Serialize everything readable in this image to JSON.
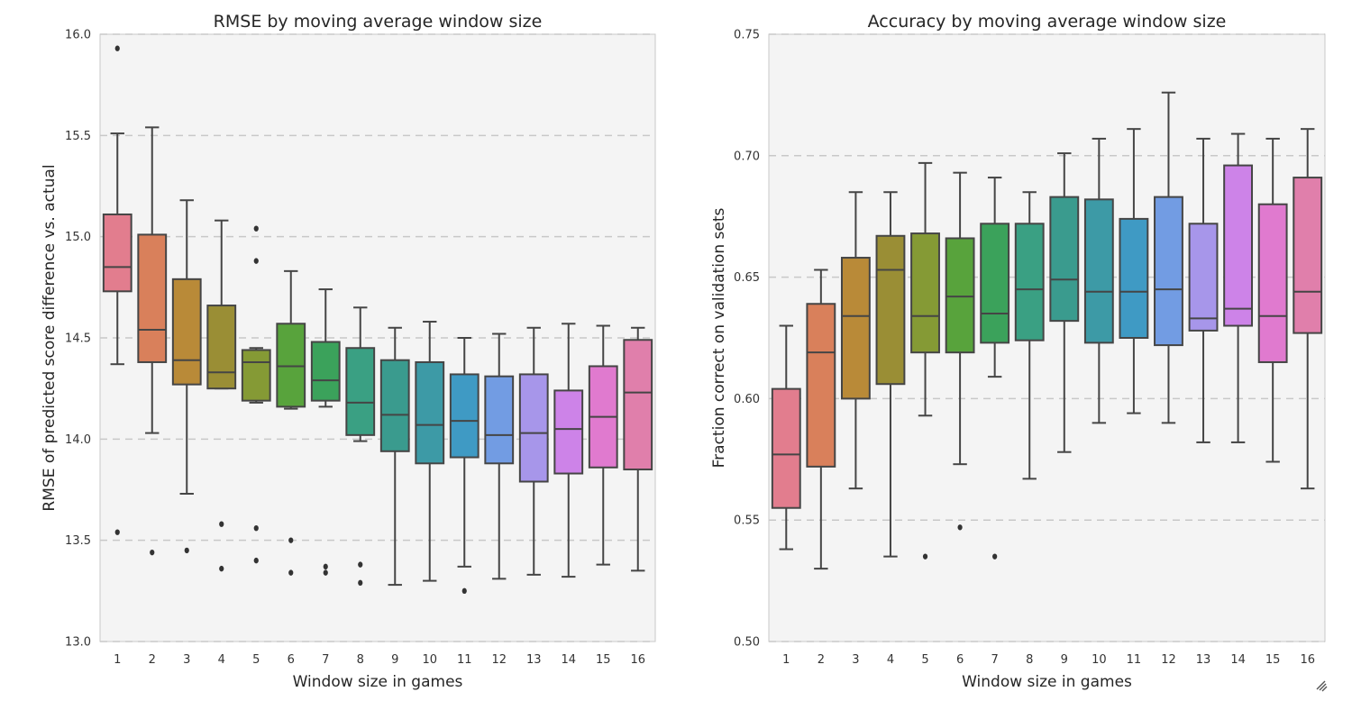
{
  "chart_data": [
    {
      "type": "box",
      "title": "RMSE by moving average window size",
      "xlabel": "Window size in games",
      "ylabel": "RMSE of predicted score difference vs. actual",
      "ylim": [
        13.0,
        16.0
      ],
      "yticks": [
        "13.0",
        "13.5",
        "14.0",
        "14.5",
        "15.0",
        "15.5",
        "16.0"
      ],
      "ytick_values": [
        13.0,
        13.5,
        14.0,
        14.5,
        15.0,
        15.5,
        16.0
      ],
      "grid": "horizontal-dashed",
      "categories": [
        "1",
        "2",
        "3",
        "4",
        "5",
        "6",
        "7",
        "8",
        "9",
        "10",
        "11",
        "12",
        "13",
        "14",
        "15",
        "16"
      ],
      "boxes": [
        {
          "whislo": 14.37,
          "q1": 14.73,
          "med": 14.85,
          "q3": 15.11,
          "whishi": 15.51,
          "fliers": [
            15.93,
            13.54
          ]
        },
        {
          "whislo": 14.03,
          "q1": 14.38,
          "med": 14.54,
          "q3": 15.01,
          "whishi": 15.54,
          "fliers": [
            13.44
          ]
        },
        {
          "whislo": 13.73,
          "q1": 14.27,
          "med": 14.39,
          "q3": 14.79,
          "whishi": 15.18,
          "fliers": [
            13.45
          ]
        },
        {
          "whislo": 14.25,
          "q1": 14.25,
          "med": 14.33,
          "q3": 14.66,
          "whishi": 15.08,
          "fliers": [
            13.58,
            13.36
          ]
        },
        {
          "whislo": 14.18,
          "q1": 14.19,
          "med": 14.38,
          "q3": 14.44,
          "whishi": 14.45,
          "fliers": [
            15.04,
            14.88,
            13.56,
            13.4
          ]
        },
        {
          "whislo": 14.15,
          "q1": 14.16,
          "med": 14.36,
          "q3": 14.57,
          "whishi": 14.83,
          "fliers": [
            13.5,
            13.34
          ]
        },
        {
          "whislo": 14.16,
          "q1": 14.19,
          "med": 14.29,
          "q3": 14.48,
          "whishi": 14.74,
          "fliers": [
            13.37,
            13.34
          ]
        },
        {
          "whislo": 13.99,
          "q1": 14.02,
          "med": 14.18,
          "q3": 14.45,
          "whishi": 14.65,
          "fliers": [
            13.38,
            13.29
          ]
        },
        {
          "whislo": 13.28,
          "q1": 13.94,
          "med": 14.12,
          "q3": 14.39,
          "whishi": 14.55,
          "fliers": []
        },
        {
          "whislo": 13.3,
          "q1": 13.88,
          "med": 14.07,
          "q3": 14.38,
          "whishi": 14.58,
          "fliers": []
        },
        {
          "whislo": 13.37,
          "q1": 13.91,
          "med": 14.09,
          "q3": 14.32,
          "whishi": 14.5,
          "fliers": [
            13.25
          ]
        },
        {
          "whislo": 13.31,
          "q1": 13.88,
          "med": 14.02,
          "q3": 14.31,
          "whishi": 14.52,
          "fliers": []
        },
        {
          "whislo": 13.33,
          "q1": 13.79,
          "med": 14.03,
          "q3": 14.32,
          "whishi": 14.55,
          "fliers": []
        },
        {
          "whislo": 13.32,
          "q1": 13.83,
          "med": 14.05,
          "q3": 14.24,
          "whishi": 14.57,
          "fliers": []
        },
        {
          "whislo": 13.38,
          "q1": 13.86,
          "med": 14.11,
          "q3": 14.36,
          "whishi": 14.56,
          "fliers": []
        },
        {
          "whislo": 13.35,
          "q1": 13.85,
          "med": 14.23,
          "q3": 14.49,
          "whishi": 14.55,
          "fliers": []
        }
      ]
    },
    {
      "type": "box",
      "title": "Accuracy by moving average window size",
      "xlabel": "Window size in games",
      "ylabel": "Fraction correct on validation sets",
      "ylim": [
        0.5,
        0.75
      ],
      "yticks": [
        "0.50",
        "0.55",
        "0.60",
        "0.65",
        "0.70",
        "0.75"
      ],
      "ytick_values": [
        0.5,
        0.55,
        0.6,
        0.65,
        0.7,
        0.75
      ],
      "grid": "horizontal-dashed",
      "categories": [
        "1",
        "2",
        "3",
        "4",
        "5",
        "6",
        "7",
        "8",
        "9",
        "10",
        "11",
        "12",
        "13",
        "14",
        "15",
        "16"
      ],
      "boxes": [
        {
          "whislo": 0.538,
          "q1": 0.555,
          "med": 0.577,
          "q3": 0.604,
          "whishi": 0.63,
          "fliers": []
        },
        {
          "whislo": 0.53,
          "q1": 0.572,
          "med": 0.619,
          "q3": 0.639,
          "whishi": 0.653,
          "fliers": []
        },
        {
          "whislo": 0.563,
          "q1": 0.6,
          "med": 0.634,
          "q3": 0.658,
          "whishi": 0.685,
          "fliers": []
        },
        {
          "whislo": 0.535,
          "q1": 0.606,
          "med": 0.653,
          "q3": 0.667,
          "whishi": 0.685,
          "fliers": []
        },
        {
          "whislo": 0.593,
          "q1": 0.619,
          "med": 0.634,
          "q3": 0.668,
          "whishi": 0.697,
          "fliers": [
            0.535
          ]
        },
        {
          "whislo": 0.573,
          "q1": 0.619,
          "med": 0.642,
          "q3": 0.666,
          "whishi": 0.693,
          "fliers": [
            0.547
          ]
        },
        {
          "whislo": 0.609,
          "q1": 0.623,
          "med": 0.635,
          "q3": 0.672,
          "whishi": 0.691,
          "fliers": [
            0.535
          ]
        },
        {
          "whislo": 0.567,
          "q1": 0.624,
          "med": 0.645,
          "q3": 0.672,
          "whishi": 0.685,
          "fliers": []
        },
        {
          "whislo": 0.578,
          "q1": 0.632,
          "med": 0.649,
          "q3": 0.683,
          "whishi": 0.701,
          "fliers": []
        },
        {
          "whislo": 0.59,
          "q1": 0.623,
          "med": 0.644,
          "q3": 0.682,
          "whishi": 0.707,
          "fliers": []
        },
        {
          "whislo": 0.594,
          "q1": 0.625,
          "med": 0.644,
          "q3": 0.674,
          "whishi": 0.711,
          "fliers": []
        },
        {
          "whislo": 0.59,
          "q1": 0.622,
          "med": 0.645,
          "q3": 0.683,
          "whishi": 0.726,
          "fliers": []
        },
        {
          "whislo": 0.582,
          "q1": 0.628,
          "med": 0.633,
          "q3": 0.672,
          "whishi": 0.707,
          "fliers": []
        },
        {
          "whislo": 0.582,
          "q1": 0.63,
          "med": 0.637,
          "q3": 0.696,
          "whishi": 0.709,
          "fliers": []
        },
        {
          "whislo": 0.574,
          "q1": 0.615,
          "med": 0.634,
          "q3": 0.68,
          "whishi": 0.707,
          "fliers": []
        },
        {
          "whislo": 0.563,
          "q1": 0.627,
          "med": 0.644,
          "q3": 0.691,
          "whishi": 0.711,
          "fliers": []
        }
      ]
    }
  ],
  "colors": [
    "#e27d8e",
    "#d9805b",
    "#b98a38",
    "#9a8e35",
    "#859a35",
    "#58a33c",
    "#3ba25b",
    "#3aa083",
    "#3a9b8e",
    "#3d9aa6",
    "#3f9ac4",
    "#729ce3",
    "#a796ea",
    "#cd83e8",
    "#e07acf",
    "#e07fab"
  ]
}
